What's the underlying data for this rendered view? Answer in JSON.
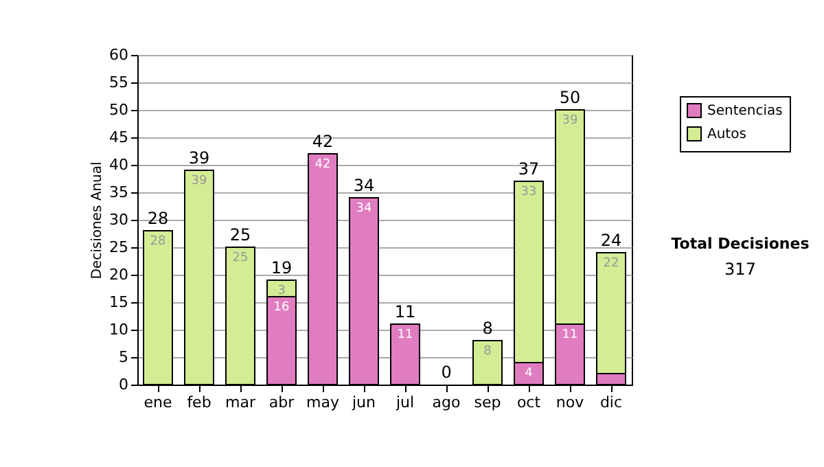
{
  "chart_data": {
    "type": "bar",
    "stacked": true,
    "ylabel": "Decisiones Anual",
    "categories": [
      "ene",
      "feb",
      "mar",
      "abr",
      "may",
      "jun",
      "jul",
      "ago",
      "sep",
      "oct",
      "nov",
      "dic"
    ],
    "series": [
      {
        "name": "Sentencias",
        "color": "#e07cc0",
        "values": [
          null,
          null,
          null,
          16,
          42,
          34,
          11,
          null,
          null,
          4,
          11,
          2
        ],
        "value_labels": [
          null,
          null,
          null,
          "16",
          "42",
          "34",
          "11",
          null,
          null,
          "4",
          "11",
          null
        ]
      },
      {
        "name": "Autos",
        "color": "#d4ec94",
        "values": [
          28,
          39,
          25,
          3,
          null,
          null,
          null,
          null,
          8,
          33,
          39,
          22
        ],
        "value_labels": [
          "28",
          "39",
          "25",
          "3",
          null,
          null,
          null,
          null,
          "8",
          "33",
          "39",
          "22"
        ]
      }
    ],
    "totals": [
      "28",
      "39",
      "25",
      "19",
      "42",
      "34",
      "11",
      "0",
      "8",
      "37",
      "50",
      "24"
    ],
    "ylim": [
      0,
      60
    ],
    "yticks": [
      0,
      5,
      10,
      15,
      20,
      25,
      30,
      35,
      40,
      45,
      50,
      55,
      60
    ],
    "grid": "y",
    "legend": "right",
    "annotations": [
      "Total Decisiones",
      "317"
    ]
  }
}
